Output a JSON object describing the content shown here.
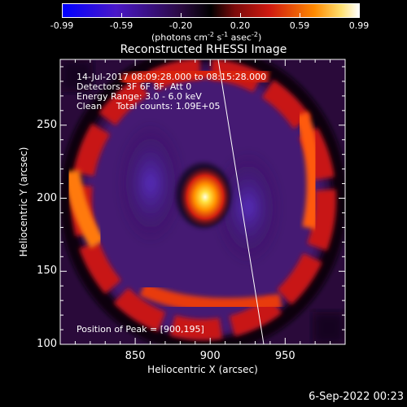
{
  "chart_data": {
    "type": "heatmap",
    "title": "Reconstructed RHESSI Image",
    "xlabel": "Heliocentric X (arcsec)",
    "ylabel": "Heliocentric Y (arcsec)",
    "xlim": [
      800,
      990
    ],
    "ylim": [
      100,
      295
    ],
    "xticks": [
      "850",
      "900",
      "950"
    ],
    "xtick_values": [
      850,
      900,
      950
    ],
    "yticks": [
      "100",
      "150",
      "200",
      "250"
    ],
    "ytick_values": [
      100,
      150,
      200,
      250
    ],
    "colorbar": {
      "range": [
        -0.99,
        0.99
      ],
      "tick_labels": [
        "-0.99",
        "-0.59",
        "-0.20",
        "0.20",
        "0.59",
        "0.99"
      ],
      "label": "(photons cm⁻² s⁻¹ asec⁻²)",
      "colors": [
        "#0000ff",
        "#5a10c0",
        "#000000",
        "#c01010",
        "#ff9000",
        "#ffffff"
      ]
    },
    "annotations": {
      "time": "14-Jul-2017 08:09:28.000 to 08:15:28.000",
      "detectors": "Detectors: 3F 6F 8F, Att 0",
      "energy": "Energy Range: 3.0 - 6.0 keV",
      "clean": "Clean     Total counts: 1.09E+05",
      "peak": "Position of Peak = [900,195]"
    },
    "peak": {
      "x": 900,
      "y": 195
    },
    "timestamp": "6-Sep-2022 00:23"
  }
}
